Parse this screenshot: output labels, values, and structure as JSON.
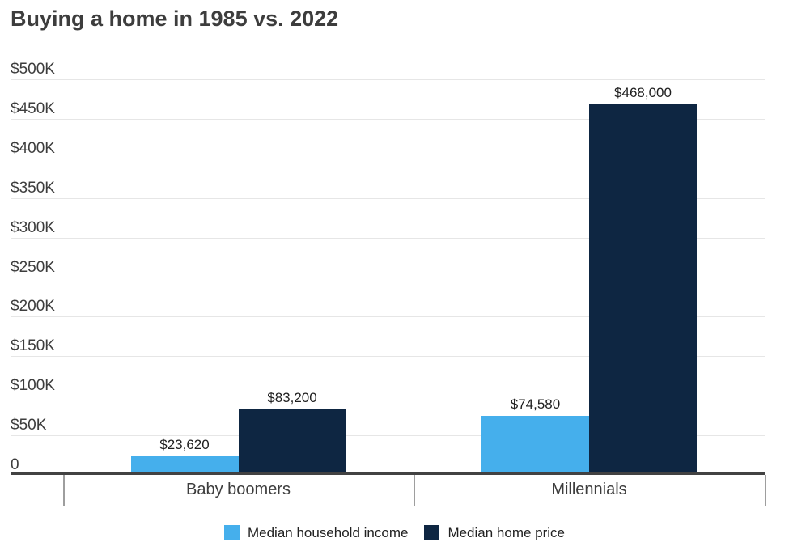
{
  "chart_data": {
    "type": "bar",
    "title": "Buying a home in 1985 vs. 2022",
    "categories": [
      "Baby boomers",
      "Millennials"
    ],
    "series": [
      {
        "name": "Median household income",
        "color": "#45AFEC",
        "values": [
          23620,
          74580
        ],
        "value_labels": [
          "$23,620",
          "$74,580"
        ]
      },
      {
        "name": "Median home price",
        "color": "#0E2642",
        "values": [
          83200,
          468000
        ],
        "value_labels": [
          "$83,200",
          "$468,000"
        ]
      }
    ],
    "xlabel": "",
    "ylabel": "",
    "ylim": [
      0,
      500000
    ],
    "y_ticks": [
      0,
      50000,
      100000,
      150000,
      200000,
      250000,
      300000,
      350000,
      400000,
      450000,
      500000
    ],
    "y_tick_labels": [
      "0",
      "$50K",
      "$100K",
      "$150K",
      "$200K",
      "$250K",
      "$300K",
      "$350K",
      "$400K",
      "$450K",
      "$500K"
    ],
    "grid": true,
    "legend_position": "bottom"
  },
  "colors": {
    "background": "#FFFFFF",
    "title_text": "#3D3D3D",
    "axis_text": "#3D3D3D",
    "value_label_text": "#1F1F1F",
    "gridline": "#E6E6E6",
    "axis_line": "#424242",
    "tick_line": "#9E9E9E"
  }
}
